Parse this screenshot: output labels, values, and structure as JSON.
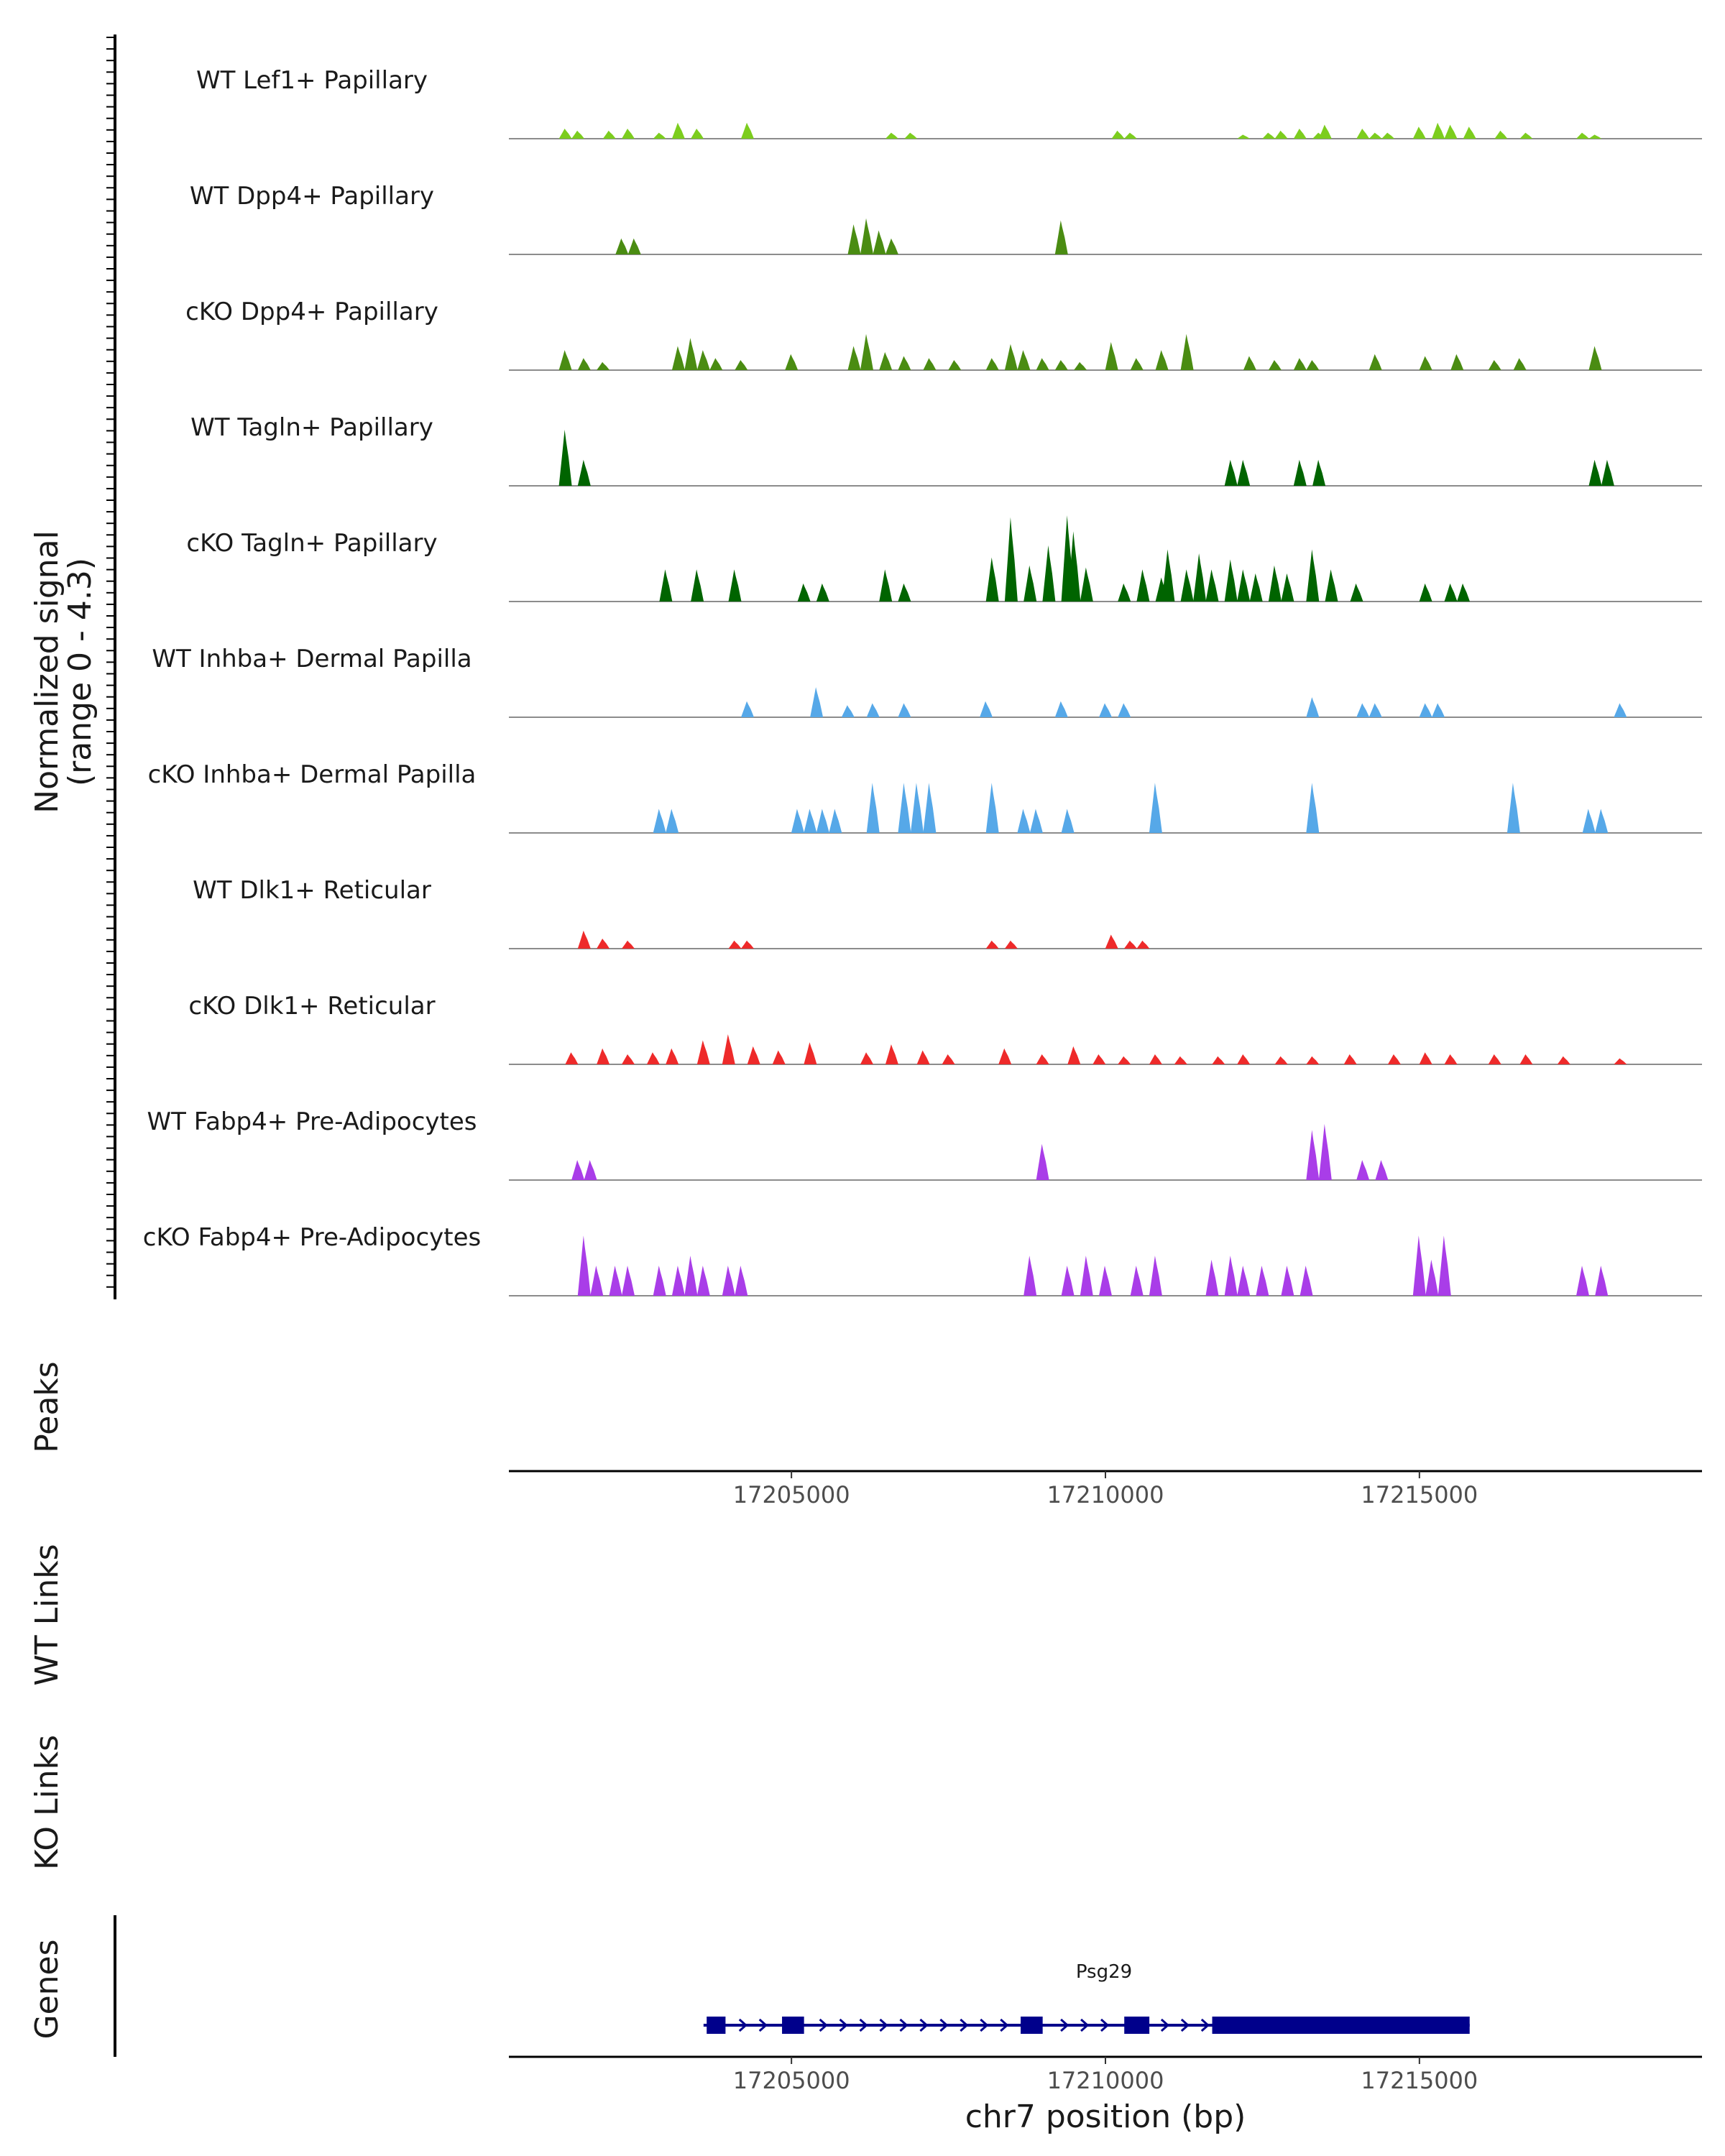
{
  "chart_data": {
    "type": "area",
    "title": "",
    "ylabel_line1": "Normalized signal",
    "ylabel_line2": "(range 0 - 4.3)",
    "ylim": [
      0,
      4.3
    ],
    "xlim": [
      17200500,
      17219500
    ],
    "xlabel": "chr7 position (bp)",
    "x_ticks": [
      17205000,
      17210000,
      17215000
    ],
    "x_tick_labels": [
      "17205000",
      "17210000",
      "17215000"
    ],
    "peaks_label": "Peaks",
    "wt_links_label": "WT Links",
    "ko_links_label": "KO Links",
    "genes_label": "Genes",
    "gene": {
      "name": "Psg29",
      "strand": "+",
      "start": 17203600,
      "end": 17215800,
      "exons": [
        [
          17203650,
          17203950
        ],
        [
          17204850,
          17205200
        ],
        [
          17208650,
          17209000
        ],
        [
          17210300,
          17210700
        ],
        [
          17211700,
          17215800
        ]
      ],
      "color": "#00008b"
    },
    "series": [
      {
        "name": "WT Lef1+ Papillary",
        "color": "#7ccd1e",
        "x": [
          17201400,
          17201600,
          17202100,
          17202400,
          17202900,
          17203200,
          17203500,
          17204300,
          17206600,
          17206900,
          17210200,
          17210400,
          17212200,
          17212600,
          17212800,
          17213100,
          17213400,
          17213500,
          17214100,
          17214300,
          17214500,
          17215000,
          17215300,
          17215500,
          17215800,
          17216300,
          17216700,
          17217600,
          17217800
        ],
        "values": [
          0.5,
          0.4,
          0.4,
          0.5,
          0.3,
          0.8,
          0.5,
          0.8,
          0.3,
          0.3,
          0.4,
          0.3,
          0.2,
          0.3,
          0.4,
          0.5,
          0.3,
          0.7,
          0.5,
          0.3,
          0.3,
          0.6,
          0.8,
          0.7,
          0.6,
          0.4,
          0.3,
          0.3,
          0.2
        ]
      },
      {
        "name": "WT Dpp4+ Papillary",
        "color": "#4a8c12",
        "x": [
          17202300,
          17202500,
          17206000,
          17206200,
          17206400,
          17206600,
          17209300
        ],
        "values": [
          0.8,
          0.8,
          1.5,
          1.8,
          1.2,
          0.8,
          1.7
        ]
      },
      {
        "name": "cKO Dpp4+ Papillary",
        "color": "#4a8c12",
        "x": [
          17201400,
          17201700,
          17202000,
          17203200,
          17203400,
          17203600,
          17203800,
          17204200,
          17205000,
          17206000,
          17206200,
          17206500,
          17206800,
          17207200,
          17207600,
          17208200,
          17208500,
          17208700,
          17209000,
          17209300,
          17209600,
          17210100,
          17210500,
          17210900,
          17211300,
          17212300,
          17212700,
          17213100,
          17213300,
          17214300,
          17215100,
          17215600,
          17216200,
          17216600,
          17217800
        ],
        "values": [
          1.0,
          0.6,
          0.4,
          1.2,
          1.6,
          1.0,
          0.6,
          0.5,
          0.8,
          1.2,
          1.8,
          0.9,
          0.7,
          0.6,
          0.5,
          0.6,
          1.3,
          1.0,
          0.6,
          0.5,
          0.4,
          1.4,
          0.6,
          1.0,
          1.8,
          0.7,
          0.5,
          0.6,
          0.5,
          0.8,
          0.7,
          0.8,
          0.5,
          0.6,
          1.2
        ]
      },
      {
        "name": "WT Tagln+ Papillary",
        "color": "#006400",
        "x": [
          17201400,
          17201700,
          17212000,
          17212200,
          17213100,
          17213400,
          17217800,
          17218000
        ],
        "values": [
          2.8,
          1.3,
          1.3,
          1.3,
          1.3,
          1.3,
          1.3,
          1.3
        ]
      },
      {
        "name": "cKO Tagln+ Papillary",
        "color": "#006400",
        "x": [
          17203000,
          17203500,
          17204100,
          17205200,
          17205500,
          17206500,
          17206800,
          17208200,
          17208500,
          17208800,
          17209100,
          17209400,
          17209500,
          17209700,
          17210300,
          17210600,
          17210900,
          17211000,
          17211300,
          17211500,
          17211700,
          17212000,
          17212200,
          17212400,
          17212700,
          17212900,
          17213300,
          17213600,
          17214000,
          17215100,
          17215500,
          17215700
        ],
        "values": [
          1.6,
          1.6,
          1.6,
          0.9,
          0.9,
          1.6,
          0.9,
          2.2,
          4.2,
          1.8,
          2.8,
          4.3,
          3.5,
          1.7,
          0.9,
          1.6,
          1.2,
          2.6,
          1.6,
          2.4,
          1.6,
          2.1,
          1.6,
          1.4,
          1.8,
          1.4,
          2.6,
          1.6,
          0.9,
          0.9,
          0.9,
          0.9
        ]
      },
      {
        "name": "WT Inhba+ Dermal Papilla",
        "color": "#56a8e8",
        "x": [
          17204300,
          17205400,
          17205900,
          17206300,
          17206800,
          17208100,
          17209300,
          17210000,
          17210300,
          17213300,
          17214100,
          17214300,
          17215100,
          17215300,
          17218200
        ],
        "values": [
          0.8,
          1.5,
          0.6,
          0.7,
          0.7,
          0.8,
          0.8,
          0.7,
          0.7,
          1.0,
          0.7,
          0.7,
          0.7,
          0.7,
          0.7
        ]
      },
      {
        "name": "cKO Inhba+ Dermal Papilla",
        "color": "#56a8e8",
        "x": [
          17202900,
          17203100,
          17205100,
          17205300,
          17205500,
          17205700,
          17206300,
          17206800,
          17207000,
          17207200,
          17208200,
          17208700,
          17208900,
          17209400,
          17210800,
          17213300,
          17216500,
          17217700,
          17217900
        ],
        "values": [
          1.2,
          1.2,
          1.2,
          1.2,
          1.2,
          1.2,
          2.5,
          2.5,
          2.5,
          2.5,
          2.5,
          1.2,
          1.2,
          1.2,
          2.5,
          2.5,
          2.5,
          1.2,
          1.2
        ]
      },
      {
        "name": "WT Dlk1+ Reticular",
        "color": "#ee2a2a",
        "x": [
          17201700,
          17202000,
          17202400,
          17204100,
          17204300,
          17208200,
          17208500,
          17210100,
          17210400,
          17210600
        ],
        "values": [
          0.9,
          0.5,
          0.4,
          0.4,
          0.4,
          0.4,
          0.4,
          0.7,
          0.4,
          0.4
        ]
      },
      {
        "name": "cKO Dlk1+ Reticular",
        "color": "#ee2a2a",
        "x": [
          17201500,
          17202000,
          17202400,
          17202800,
          17203100,
          17203600,
          17204000,
          17204400,
          17204800,
          17205300,
          17206200,
          17206600,
          17207100,
          17207500,
          17208400,
          17209000,
          17209500,
          17209900,
          17210300,
          17210800,
          17211200,
          17211800,
          17212200,
          17212800,
          17213300,
          17213900,
          17214600,
          17215100,
          17215500,
          17216200,
          17216700,
          17217300,
          17218200
        ],
        "values": [
          0.6,
          0.8,
          0.5,
          0.6,
          0.8,
          1.2,
          1.5,
          0.9,
          0.7,
          1.1,
          0.6,
          1.0,
          0.7,
          0.5,
          0.8,
          0.5,
          0.9,
          0.5,
          0.4,
          0.5,
          0.4,
          0.4,
          0.5,
          0.4,
          0.4,
          0.5,
          0.5,
          0.6,
          0.5,
          0.5,
          0.5,
          0.4,
          0.3
        ]
      },
      {
        "name": "WT Fabp4+ Pre-Adipocytes",
        "color": "#a93de8",
        "x": [
          17201600,
          17201800,
          17209000,
          17213300,
          17213500,
          17214100,
          17214400
        ],
        "values": [
          1.0,
          1.0,
          1.8,
          2.5,
          2.8,
          1.0,
          1.0
        ]
      },
      {
        "name": "cKO Fabp4+ Pre-Adipocytes",
        "color": "#a93de8",
        "x": [
          17201700,
          17201900,
          17202200,
          17202400,
          17202900,
          17203200,
          17203400,
          17203600,
          17204000,
          17204200,
          17208800,
          17209400,
          17209700,
          17210000,
          17210500,
          17210800,
          17211700,
          17212000,
          17212200,
          17212500,
          17212900,
          17213200,
          17215000,
          17215200,
          17215400,
          17217600,
          17217900
        ],
        "values": [
          3.0,
          1.5,
          1.5,
          1.5,
          1.5,
          1.5,
          2.0,
          1.5,
          1.5,
          1.5,
          2.0,
          1.5,
          2.0,
          1.5,
          1.5,
          2.0,
          1.8,
          2.0,
          1.5,
          1.5,
          1.5,
          1.5,
          3.0,
          1.8,
          3.0,
          1.5,
          1.5
        ]
      }
    ]
  }
}
